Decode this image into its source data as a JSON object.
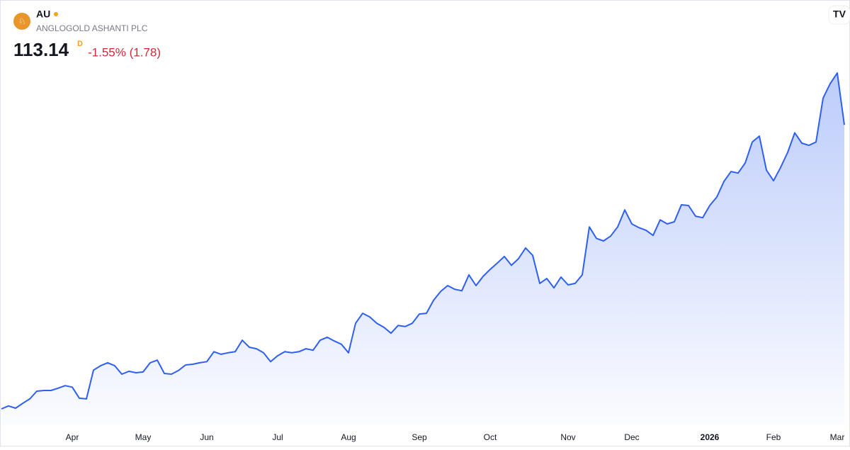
{
  "header": {
    "symbol": "AU",
    "name": "ANGLOGOLD ASHANTI PLC",
    "price": "113.14",
    "interval": "D",
    "change": "-1.55% (1.78)"
  },
  "chart_data": {
    "type": "area",
    "categories": [
      null,
      null,
      null,
      null,
      null,
      null,
      null,
      null,
      null,
      null,
      "Apr",
      null,
      null,
      null,
      null,
      null,
      null,
      null,
      null,
      null,
      "May",
      null,
      null,
      null,
      null,
      null,
      null,
      null,
      null,
      "Jun",
      null,
      null,
      null,
      null,
      null,
      null,
      null,
      null,
      null,
      "Jul",
      null,
      null,
      null,
      null,
      null,
      null,
      null,
      null,
      null,
      "Aug",
      null,
      null,
      null,
      null,
      null,
      null,
      null,
      null,
      null,
      "Sep",
      null,
      null,
      null,
      null,
      null,
      null,
      null,
      null,
      null,
      "Oct",
      null,
      null,
      null,
      null,
      null,
      null,
      null,
      null,
      null,
      null,
      "Nov",
      null,
      null,
      null,
      null,
      null,
      null,
      null,
      null,
      "Dec",
      null,
      null,
      null,
      null,
      null,
      null,
      null,
      null,
      null,
      null,
      "2026",
      null,
      null,
      null,
      null,
      null,
      null,
      null,
      null,
      "Feb",
      null,
      null,
      null,
      null,
      null,
      null,
      null,
      null,
      "Mar",
      null
    ],
    "series": [
      {
        "name": "AU",
        "color": "#2e5ff0",
        "values": [
          36.2,
          37.0,
          36.4,
          37.7,
          38.9,
          41.0,
          41.2,
          41.2,
          41.8,
          42.5,
          42.1,
          39.1,
          38.9,
          46.7,
          47.9,
          48.7,
          47.9,
          45.6,
          46.4,
          46.0,
          46.2,
          48.7,
          49.4,
          45.8,
          45.6,
          46.6,
          48.1,
          48.3,
          48.7,
          49.0,
          51.7,
          51.0,
          51.4,
          51.7,
          54.8,
          52.9,
          52.5,
          51.4,
          49.0,
          50.6,
          51.7,
          51.4,
          51.7,
          52.5,
          52.1,
          54.8,
          55.6,
          54.6,
          53.7,
          51.4,
          59.4,
          62.1,
          61.1,
          59.4,
          58.3,
          56.7,
          58.8,
          58.5,
          59.4,
          61.9,
          62.1,
          65.6,
          68.0,
          69.6,
          68.6,
          68.2,
          72.5,
          69.6,
          72.1,
          74.0,
          75.7,
          77.5,
          75.1,
          76.9,
          79.8,
          77.8,
          70.2,
          71.5,
          69.0,
          71.9,
          69.8,
          70.2,
          72.5,
          85.5,
          82.4,
          81.7,
          83.0,
          85.5,
          90.1,
          86.3,
          85.3,
          84.6,
          83.2,
          87.4,
          86.3,
          86.9,
          91.5,
          91.3,
          88.4,
          88.0,
          91.3,
          93.6,
          97.8,
          100.5,
          100.1,
          102.8,
          108.5,
          110.1,
          100.9,
          98.0,
          101.6,
          105.7,
          111.0,
          108.2,
          107.6,
          108.5,
          120.4,
          124.3,
          127.2,
          113.14
        ]
      }
    ]
  }
}
